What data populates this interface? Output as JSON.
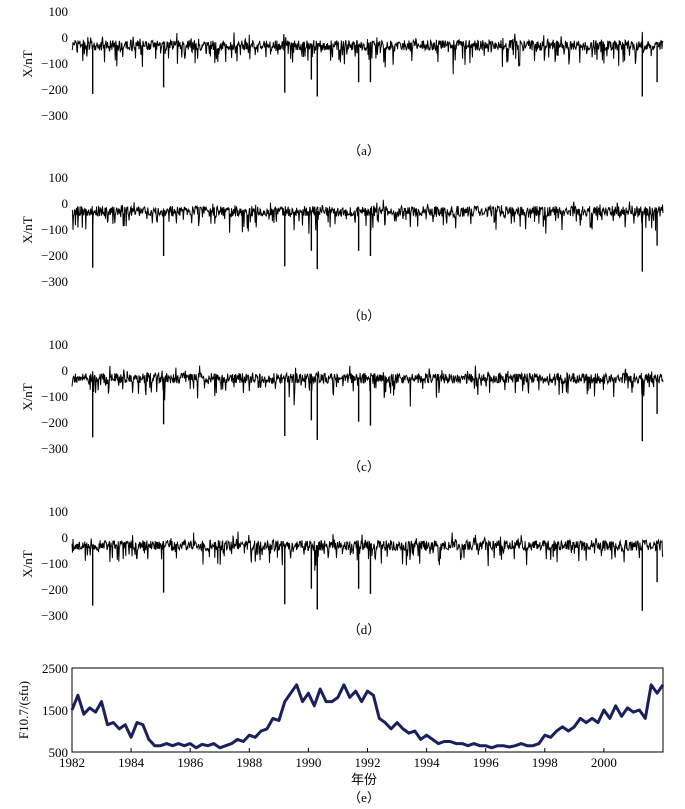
{
  "chart_data": [
    {
      "type": "line",
      "panel": "a",
      "caption": "（a）",
      "ylabel": "X/nT",
      "ylim": [
        -300,
        100
      ],
      "yticks": [
        "100",
        "0",
        "−100",
        "−200",
        "−300"
      ],
      "xlim": [
        1982,
        2002
      ],
      "x_tick_labels_shown": false,
      "series": [
        {
          "color": "#000000",
          "baseline": -28,
          "spikes": [
            [
              1982.7,
              -215
            ],
            [
              1985.1,
              -190
            ],
            [
              1989.2,
              -210
            ],
            [
              1990.1,
              -160
            ],
            [
              1990.3,
              -225
            ],
            [
              1991.7,
              -170
            ],
            [
              1992.1,
              -170
            ],
            [
              2001.3,
              -225
            ],
            [
              2001.8,
              -170
            ]
          ]
        }
      ]
    },
    {
      "type": "line",
      "panel": "b",
      "caption": "（b）",
      "ylabel": "X/nT",
      "ylim": [
        -300,
        100
      ],
      "yticks": [
        "100",
        "0",
        "−100",
        "−200",
        "−300"
      ],
      "xlim": [
        1982,
        2002
      ],
      "x_tick_labels_shown": false,
      "series": [
        {
          "color": "#000000",
          "baseline": -28,
          "spikes": [
            [
              1982.7,
              -245
            ],
            [
              1985.1,
              -200
            ],
            [
              1989.2,
              -240
            ],
            [
              1990.1,
              -180
            ],
            [
              1990.3,
              -250
            ],
            [
              1991.7,
              -180
            ],
            [
              1992.1,
              -200
            ],
            [
              2001.3,
              -260
            ],
            [
              2001.8,
              -160
            ]
          ]
        }
      ]
    },
    {
      "type": "line",
      "panel": "c",
      "caption": "（c）",
      "ylabel": "X/nT",
      "ylim": [
        -300,
        100
      ],
      "yticks": [
        "100",
        "0",
        "−100",
        "−200",
        "−300"
      ],
      "xlim": [
        1982,
        2002
      ],
      "x_tick_labels_shown": false,
      "series": [
        {
          "color": "#000000",
          "baseline": -28,
          "spikes": [
            [
              1982.7,
              -255
            ],
            [
              1985.1,
              -205
            ],
            [
              1989.2,
              -250
            ],
            [
              1990.1,
              -190
            ],
            [
              1990.3,
              -265
            ],
            [
              1991.7,
              -195
            ],
            [
              1992.1,
              -210
            ],
            [
              2001.3,
              -270
            ],
            [
              2001.8,
              -165
            ]
          ]
        }
      ]
    },
    {
      "type": "line",
      "panel": "d",
      "caption": "（d）",
      "ylabel": "X/nT",
      "ylim": [
        -300,
        100
      ],
      "yticks": [
        "100",
        "0",
        "−100",
        "−200",
        "−300"
      ],
      "xlim": [
        1982,
        2002
      ],
      "x_tick_labels_shown": false,
      "series": [
        {
          "color": "#000000",
          "baseline": -28,
          "spikes": [
            [
              1982.7,
              -260
            ],
            [
              1985.1,
              -210
            ],
            [
              1989.2,
              -255
            ],
            [
              1990.1,
              -195
            ],
            [
              1990.3,
              -275
            ],
            [
              1991.7,
              -195
            ],
            [
              1992.1,
              -215
            ],
            [
              2001.3,
              -280
            ],
            [
              2001.8,
              -170
            ]
          ]
        }
      ]
    },
    {
      "type": "line",
      "panel": "e",
      "caption": "（e）",
      "ylabel": "F10.7/(sfu)",
      "xlabel": "年份",
      "ylim": [
        500,
        2500
      ],
      "yticks": [
        "2500",
        "1500",
        "500"
      ],
      "xlim": [
        1982,
        2002
      ],
      "xticks": [
        "1982",
        "1984",
        "1986",
        "1988",
        "1990",
        "1992",
        "1994",
        "1996",
        "1998",
        "2000"
      ],
      "series": [
        {
          "color": "#1a1f5e",
          "x": [
            1982.0,
            1982.2,
            1982.4,
            1982.6,
            1982.8,
            1983.0,
            1983.2,
            1983.4,
            1983.6,
            1983.8,
            1984.0,
            1984.2,
            1984.4,
            1984.6,
            1984.8,
            1985.0,
            1985.2,
            1985.4,
            1985.6,
            1985.8,
            1986.0,
            1986.2,
            1986.4,
            1986.6,
            1986.8,
            1987.0,
            1987.2,
            1987.4,
            1987.6,
            1987.8,
            1988.0,
            1988.2,
            1988.4,
            1988.6,
            1988.8,
            1989.0,
            1989.2,
            1989.4,
            1989.6,
            1989.8,
            1990.0,
            1990.2,
            1990.4,
            1990.6,
            1990.8,
            1991.0,
            1991.2,
            1991.4,
            1991.6,
            1991.8,
            1992.0,
            1992.2,
            1992.4,
            1992.6,
            1992.8,
            1993.0,
            1993.2,
            1993.4,
            1993.6,
            1993.8,
            1994.0,
            1994.2,
            1994.4,
            1994.6,
            1994.8,
            1995.0,
            1995.2,
            1995.4,
            1995.6,
            1995.8,
            1996.0,
            1996.2,
            1996.4,
            1996.6,
            1996.8,
            1997.0,
            1997.2,
            1997.4,
            1997.6,
            1997.8,
            1998.0,
            1998.2,
            1998.4,
            1998.6,
            1998.8,
            1999.0,
            1999.2,
            1999.4,
            1999.6,
            1999.8,
            2000.0,
            2000.2,
            2000.4,
            2000.6,
            2000.8,
            2001.0,
            2001.2,
            2001.4,
            2001.6,
            2001.8,
            2002.0
          ],
          "y": [
            1500,
            1850,
            1400,
            1550,
            1450,
            1700,
            1150,
            1200,
            1050,
            1150,
            850,
            1200,
            1150,
            800,
            650,
            650,
            700,
            650,
            700,
            650,
            700,
            600,
            680,
            650,
            700,
            600,
            650,
            700,
            800,
            750,
            900,
            850,
            1000,
            1050,
            1300,
            1250,
            1700,
            1900,
            2100,
            1700,
            1900,
            1600,
            2000,
            1700,
            1700,
            1800,
            2100,
            1800,
            1950,
            1700,
            1950,
            1850,
            1300,
            1200,
            1050,
            1200,
            1050,
            950,
            1000,
            800,
            900,
            800,
            700,
            750,
            750,
            700,
            700,
            650,
            700,
            650,
            650,
            600,
            650,
            650,
            620,
            650,
            700,
            650,
            650,
            700,
            900,
            850,
            1000,
            1100,
            1000,
            1100,
            1300,
            1200,
            1300,
            1200,
            1500,
            1300,
            1600,
            1350,
            1550,
            1450,
            1500,
            1300,
            2100,
            1900,
            2100
          ]
        }
      ]
    }
  ]
}
